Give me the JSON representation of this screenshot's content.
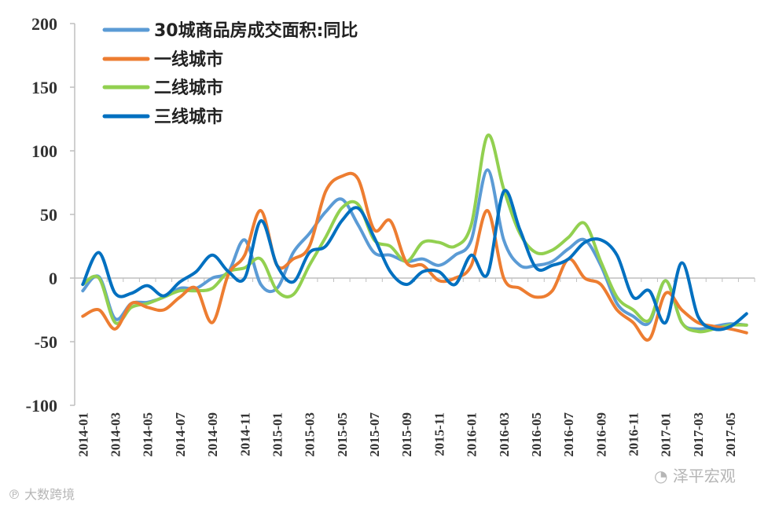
{
  "chart_data": {
    "type": "line",
    "title": "",
    "xlabel": "",
    "ylabel": "",
    "ylim": [
      -100,
      200
    ],
    "yticks": [
      "200",
      "150",
      "100",
      "50",
      "0",
      "-50",
      "-100"
    ],
    "xticks": [
      "2014-01",
      "2014-03",
      "2014-05",
      "2014-07",
      "2014-09",
      "2014-11",
      "2015-01",
      "2015-03",
      "2015-05",
      "2015-07",
      "2015-09",
      "2015-11",
      "2016-01",
      "2016-03",
      "2016-05",
      "2016-07",
      "2016-09",
      "2016-11",
      "2017-01",
      "2017-03",
      "2017-05"
    ],
    "x": [
      "2014-01",
      "2014-02",
      "2014-03",
      "2014-04",
      "2014-05",
      "2014-06",
      "2014-07",
      "2014-08",
      "2014-09",
      "2014-10",
      "2014-11",
      "2014-12",
      "2015-01",
      "2015-02",
      "2015-03",
      "2015-04",
      "2015-05",
      "2015-06",
      "2015-07",
      "2015-08",
      "2015-09",
      "2015-10",
      "2015-11",
      "2015-12",
      "2016-01",
      "2016-02",
      "2016-03",
      "2016-04",
      "2016-05",
      "2016-06",
      "2016-07",
      "2016-08",
      "2016-09",
      "2016-10",
      "2016-11",
      "2016-12",
      "2017-01",
      "2017-02",
      "2017-03",
      "2017-04",
      "2017-05",
      "2017-06"
    ],
    "legend_position": "top-left",
    "grid": false,
    "series": [
      {
        "name": "30城商品房成交面积:同比",
        "color": "#5b9bd5",
        "values": [
          -10,
          1,
          -32,
          -20,
          -19,
          -15,
          -8,
          -8,
          0,
          5,
          30,
          -5,
          -8,
          20,
          35,
          52,
          62,
          42,
          20,
          18,
          13,
          15,
          10,
          18,
          30,
          85,
          30,
          10,
          10,
          13,
          23,
          30,
          10,
          -20,
          -30,
          -35,
          -2,
          -35,
          -40,
          -38,
          -36,
          -37
        ]
      },
      {
        "name": "一线城市",
        "color": "#ed7d31",
        "values": [
          -30,
          -25,
          -40,
          -20,
          -23,
          -25,
          -15,
          -8,
          -35,
          3,
          18,
          53,
          10,
          15,
          25,
          68,
          80,
          78,
          38,
          45,
          12,
          10,
          -2,
          0,
          10,
          53,
          0,
          -8,
          -15,
          -10,
          15,
          0,
          -5,
          -25,
          -35,
          -48,
          -12,
          -25,
          -35,
          -38,
          -40,
          -43
        ]
      },
      {
        "name": "二线城市",
        "color": "#92d050",
        "values": [
          -5,
          0,
          -35,
          -23,
          -20,
          -15,
          -10,
          -10,
          -8,
          5,
          8,
          15,
          -10,
          -13,
          10,
          32,
          55,
          58,
          30,
          25,
          13,
          28,
          28,
          25,
          42,
          112,
          70,
          35,
          20,
          22,
          32,
          43,
          13,
          -15,
          -25,
          -33,
          -2,
          -35,
          -42,
          -40,
          -37,
          -37
        ]
      },
      {
        "name": "三线城市",
        "color": "#0070c0",
        "values": [
          -5,
          20,
          -12,
          -12,
          -6,
          -14,
          -3,
          5,
          18,
          5,
          0,
          45,
          10,
          -3,
          20,
          25,
          45,
          55,
          32,
          5,
          -5,
          5,
          5,
          -5,
          18,
          3,
          68,
          38,
          8,
          10,
          15,
          28,
          30,
          18,
          -15,
          -10,
          -35,
          12,
          -30,
          -40,
          -38,
          -28
        ]
      }
    ]
  },
  "watermarks": {
    "right": "泽平宏观",
    "left": "大数跨境"
  }
}
